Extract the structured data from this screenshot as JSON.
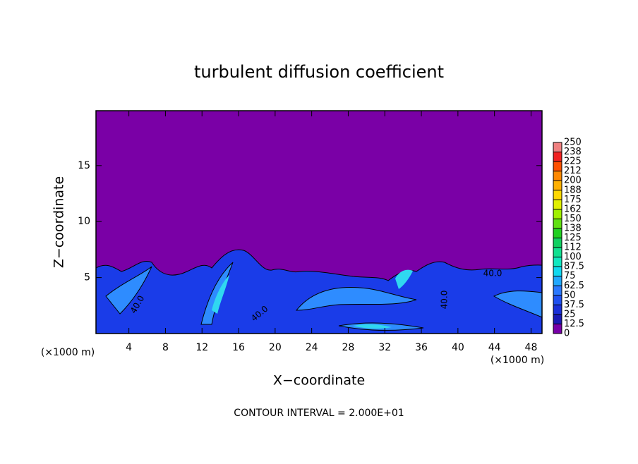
{
  "chart_data": {
    "type": "contour",
    "title": "turbulent diffusion coefficient",
    "xlabel": "X−coordinate",
    "ylabel": "Z−coordinate",
    "x_unit": "(×1000 m)",
    "x_unit_right": "(×1000 m)",
    "footnote": "CONTOUR INTERVAL = 2.000E+01",
    "xlim": [
      0.4,
      49.2
    ],
    "xticks": [
      4,
      8,
      12,
      16,
      20,
      24,
      28,
      32,
      36,
      40,
      44,
      48
    ],
    "ylim": [
      0,
      19.9
    ],
    "yticks": [
      5,
      10,
      15
    ],
    "contour_labels": [
      "40.0",
      "40.0",
      "40.0",
      "40.0"
    ],
    "colorbar": {
      "lim": [
        0,
        250
      ],
      "ticks": [
        0,
        12.5,
        25,
        37.5,
        50,
        62.5,
        75,
        87.5,
        100,
        {
          "value": 112.5,
          "label": "112"
        },
        {
          "value": 125,
          "label": "125"
        },
        {
          "value": 137.5,
          "label": "138"
        },
        150,
        {
          "value": 162.5,
          "label": "162"
        },
        175,
        {
          "value": 187.5,
          "label": "188"
        },
        200,
        {
          "value": 212.5,
          "label": "212"
        },
        225,
        {
          "value": 237.5,
          "label": "238"
        },
        250
      ],
      "colors": [
        "#7800a8",
        "#1a1ab4",
        "#1a30d8",
        "#1f50f0",
        "#2a78ff",
        "#20a8ff",
        "#10d8f0",
        "#10e8c0",
        "#10e090",
        "#10d060",
        "#20d020",
        "#60e010",
        "#a0f000",
        "#e0f000",
        "#ffd800",
        "#ffb000",
        "#ff8800",
        "#ff5000",
        "#f02020",
        "#f08080"
      ]
    }
  }
}
